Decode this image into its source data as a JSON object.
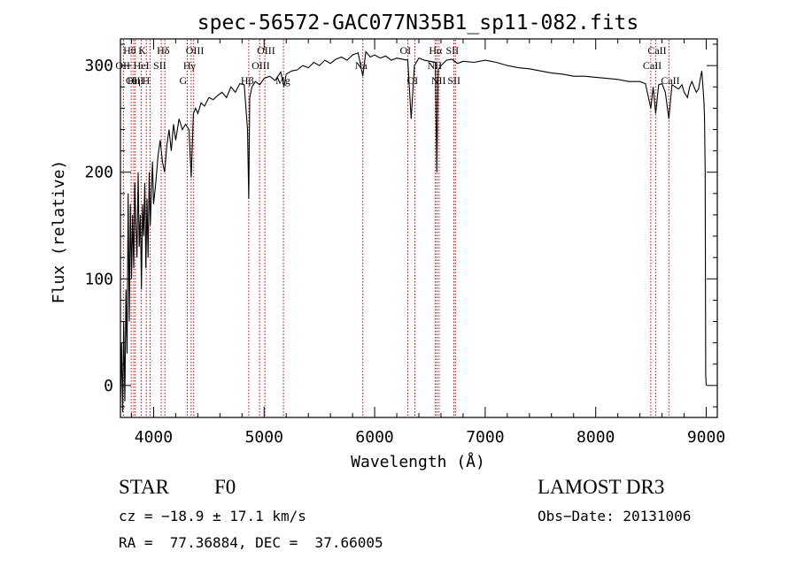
{
  "chart_data": {
    "type": "line",
    "title": "spec-56572-GAC077N35B1_sp11-082.fits",
    "xlabel": "Wavelength (Å)",
    "ylabel": "Flux (relative)",
    "xlim": [
      3700,
      9100
    ],
    "ylim": [
      -30,
      325
    ],
    "x_ticks": [
      4000,
      5000,
      6000,
      7000,
      8000,
      9000
    ],
    "y_ticks": [
      0,
      100,
      200,
      300
    ],
    "grid": false,
    "series": [
      {
        "name": "flux",
        "x": [
          3700,
          3710,
          3720,
          3730,
          3740,
          3750,
          3760,
          3770,
          3780,
          3790,
          3800,
          3810,
          3820,
          3830,
          3840,
          3850,
          3860,
          3870,
          3880,
          3890,
          3900,
          3910,
          3920,
          3930,
          3940,
          3950,
          3960,
          3970,
          3980,
          3990,
          4000,
          4020,
          4040,
          4060,
          4080,
          4100,
          4120,
          4140,
          4160,
          4180,
          4200,
          4230,
          4260,
          4290,
          4320,
          4340,
          4360,
          4380,
          4400,
          4430,
          4460,
          4500,
          4540,
          4580,
          4620,
          4660,
          4700,
          4740,
          4780,
          4820,
          4850,
          4861,
          4870,
          4890,
          4920,
          4960,
          5000,
          5050,
          5100,
          5150,
          5180,
          5200,
          5250,
          5300,
          5350,
          5400,
          5450,
          5500,
          5550,
          5600,
          5650,
          5700,
          5750,
          5800,
          5850,
          5893,
          5920,
          5960,
          6000,
          6050,
          6100,
          6150,
          6200,
          6250,
          6300,
          6330,
          6360,
          6400,
          6450,
          6500,
          6550,
          6563,
          6575,
          6600,
          6650,
          6700,
          6750,
          6800,
          6900,
          7000,
          7100,
          7200,
          7300,
          7400,
          7500,
          7600,
          7700,
          7800,
          7900,
          8000,
          8100,
          8200,
          8300,
          8400,
          8450,
          8498,
          8520,
          8542,
          8570,
          8600,
          8630,
          8662,
          8690,
          8720,
          8750,
          8780,
          8800,
          8830,
          8850,
          8870,
          8890,
          8910,
          8930,
          8950,
          8960,
          8970,
          8980,
          8985,
          8990,
          8995,
          9000
        ],
        "y": [
          -20,
          40,
          -25,
          60,
          -15,
          90,
          30,
          180,
          60,
          170,
          100,
          160,
          110,
          190,
          150,
          120,
          200,
          130,
          160,
          90,
          170,
          140,
          190,
          110,
          175,
          120,
          200,
          150,
          180,
          210,
          170,
          190,
          215,
          230,
          210,
          200,
          225,
          240,
          220,
          245,
          230,
          250,
          240,
          245,
          240,
          195,
          255,
          260,
          255,
          265,
          262,
          270,
          268,
          272,
          275,
          270,
          280,
          275,
          283,
          282,
          240,
          175,
          270,
          280,
          285,
          282,
          288,
          290,
          286,
          294,
          280,
          292,
          295,
          296,
          300,
          298,
          303,
          300,
          305,
          302,
          306,
          308,
          305,
          310,
          312,
          290,
          313,
          308,
          310,
          307,
          309,
          305,
          307,
          306,
          305,
          250,
          300,
          307,
          305,
          304,
          303,
          200,
          296,
          300,
          305,
          306,
          302,
          304,
          303,
          305,
          303,
          300,
          298,
          297,
          295,
          293,
          292,
          290,
          290,
          289,
          288,
          287,
          285,
          285,
          283,
          260,
          280,
          255,
          282,
          283,
          275,
          250,
          282,
          280,
          278,
          282,
          275,
          270,
          280,
          285,
          280,
          275,
          278,
          290,
          295,
          280,
          265,
          250,
          200,
          10,
          0
        ]
      }
    ],
    "lines": [
      {
        "label": "Hθ",
        "x": 3797,
        "row": 1
      },
      {
        "label": "OII",
        "x": 3727,
        "row": 2
      },
      {
        "label": "OIII",
        "x": 3820,
        "row": 3
      },
      {
        "label": "Hη",
        "x": 3835,
        "row": 3
      },
      {
        "label": "K",
        "x": 3934,
        "row": 1
      },
      {
        "label": "HeI",
        "x": 3889,
        "row": 2
      },
      {
        "label": "H",
        "x": 3969,
        "row": 3
      },
      {
        "label": "SII",
        "x": 4069,
        "row": 2
      },
      {
        "label": "Hδ",
        "x": 4102,
        "row": 1
      },
      {
        "label": "OIII",
        "x": 4363,
        "row": 1
      },
      {
        "label": "Hγ",
        "x": 4340,
        "row": 2
      },
      {
        "label": "G",
        "x": 4305,
        "row": 3
      },
      {
        "label": "Hβ",
        "x": 4861,
        "row": 3
      },
      {
        "label": "OIII",
        "x": 4959,
        "row": 2
      },
      {
        "label": "OIII",
        "x": 5007,
        "row": 1
      },
      {
        "label": "Mg",
        "x": 5175,
        "row": 3
      },
      {
        "label": "Na",
        "x": 5893,
        "row": 2
      },
      {
        "label": "OI",
        "x": 6300,
        "row": 1
      },
      {
        "label": "OI",
        "x": 6364,
        "row": 3
      },
      {
        "label": "Hα",
        "x": 6563,
        "row": 1
      },
      {
        "label": "NII",
        "x": 6548,
        "row": 2
      },
      {
        "label": "NII",
        "x": 6583,
        "row": 3
      },
      {
        "label": "SII",
        "x": 6716,
        "row": 1
      },
      {
        "label": "SII",
        "x": 6731,
        "row": 3
      },
      {
        "label": "CaII",
        "x": 8498,
        "row": 2
      },
      {
        "label": "CaII",
        "x": 8542,
        "row": 1
      },
      {
        "label": "CaII",
        "x": 8662,
        "row": 3
      }
    ]
  },
  "info": {
    "class": "STAR",
    "subclass": "F0",
    "survey": "LAMOST DR3",
    "cz": "cz = −18.9 ± 17.1 km/s",
    "obs_date": "Obs−Date: 20131006",
    "coords": "RA =  77.36884, DEC =  37.66005"
  }
}
